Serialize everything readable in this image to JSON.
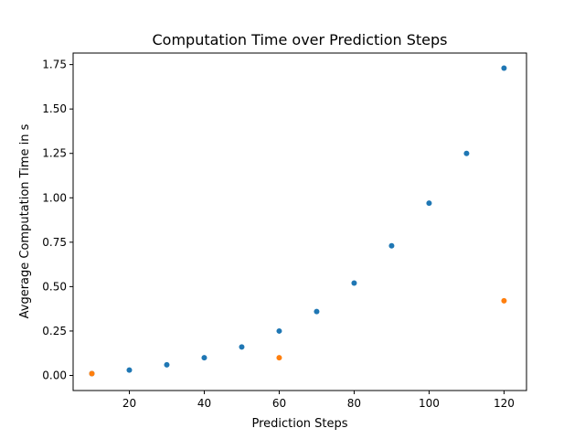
{
  "chart_data": {
    "type": "scatter",
    "title": "Computation Time over Prediction Steps",
    "xlabel": "Prediction Steps",
    "ylabel": "Avgerage Computation Time in s",
    "xlim": [
      5,
      126
    ],
    "ylim": [
      -0.085,
      1.815
    ],
    "xticks": [
      20,
      40,
      60,
      80,
      100,
      120
    ],
    "xtick_labels": [
      "20",
      "40",
      "60",
      "80",
      "100",
      "120"
    ],
    "yticks": [
      0.0,
      0.25,
      0.5,
      0.75,
      1.0,
      1.25,
      1.5,
      1.75
    ],
    "ytick_labels": [
      "0.00",
      "0.25",
      "0.50",
      "0.75",
      "1.00",
      "1.25",
      "1.50",
      "1.75"
    ],
    "grid": false,
    "series": [
      {
        "color": "#1f77b4",
        "points": [
          {
            "x": 10,
            "y": 0.01
          },
          {
            "x": 20,
            "y": 0.03
          },
          {
            "x": 30,
            "y": 0.06
          },
          {
            "x": 40,
            "y": 0.1
          },
          {
            "x": 50,
            "y": 0.16
          },
          {
            "x": 60,
            "y": 0.25
          },
          {
            "x": 70,
            "y": 0.36
          },
          {
            "x": 80,
            "y": 0.52
          },
          {
            "x": 90,
            "y": 0.73
          },
          {
            "x": 100,
            "y": 0.97
          },
          {
            "x": 110,
            "y": 1.25
          },
          {
            "x": 120,
            "y": 1.73
          }
        ]
      },
      {
        "color": "#ff7f0e",
        "points": [
          {
            "x": 10,
            "y": 0.01
          },
          {
            "x": 60,
            "y": 0.1
          },
          {
            "x": 120,
            "y": 0.42
          }
        ]
      }
    ]
  }
}
